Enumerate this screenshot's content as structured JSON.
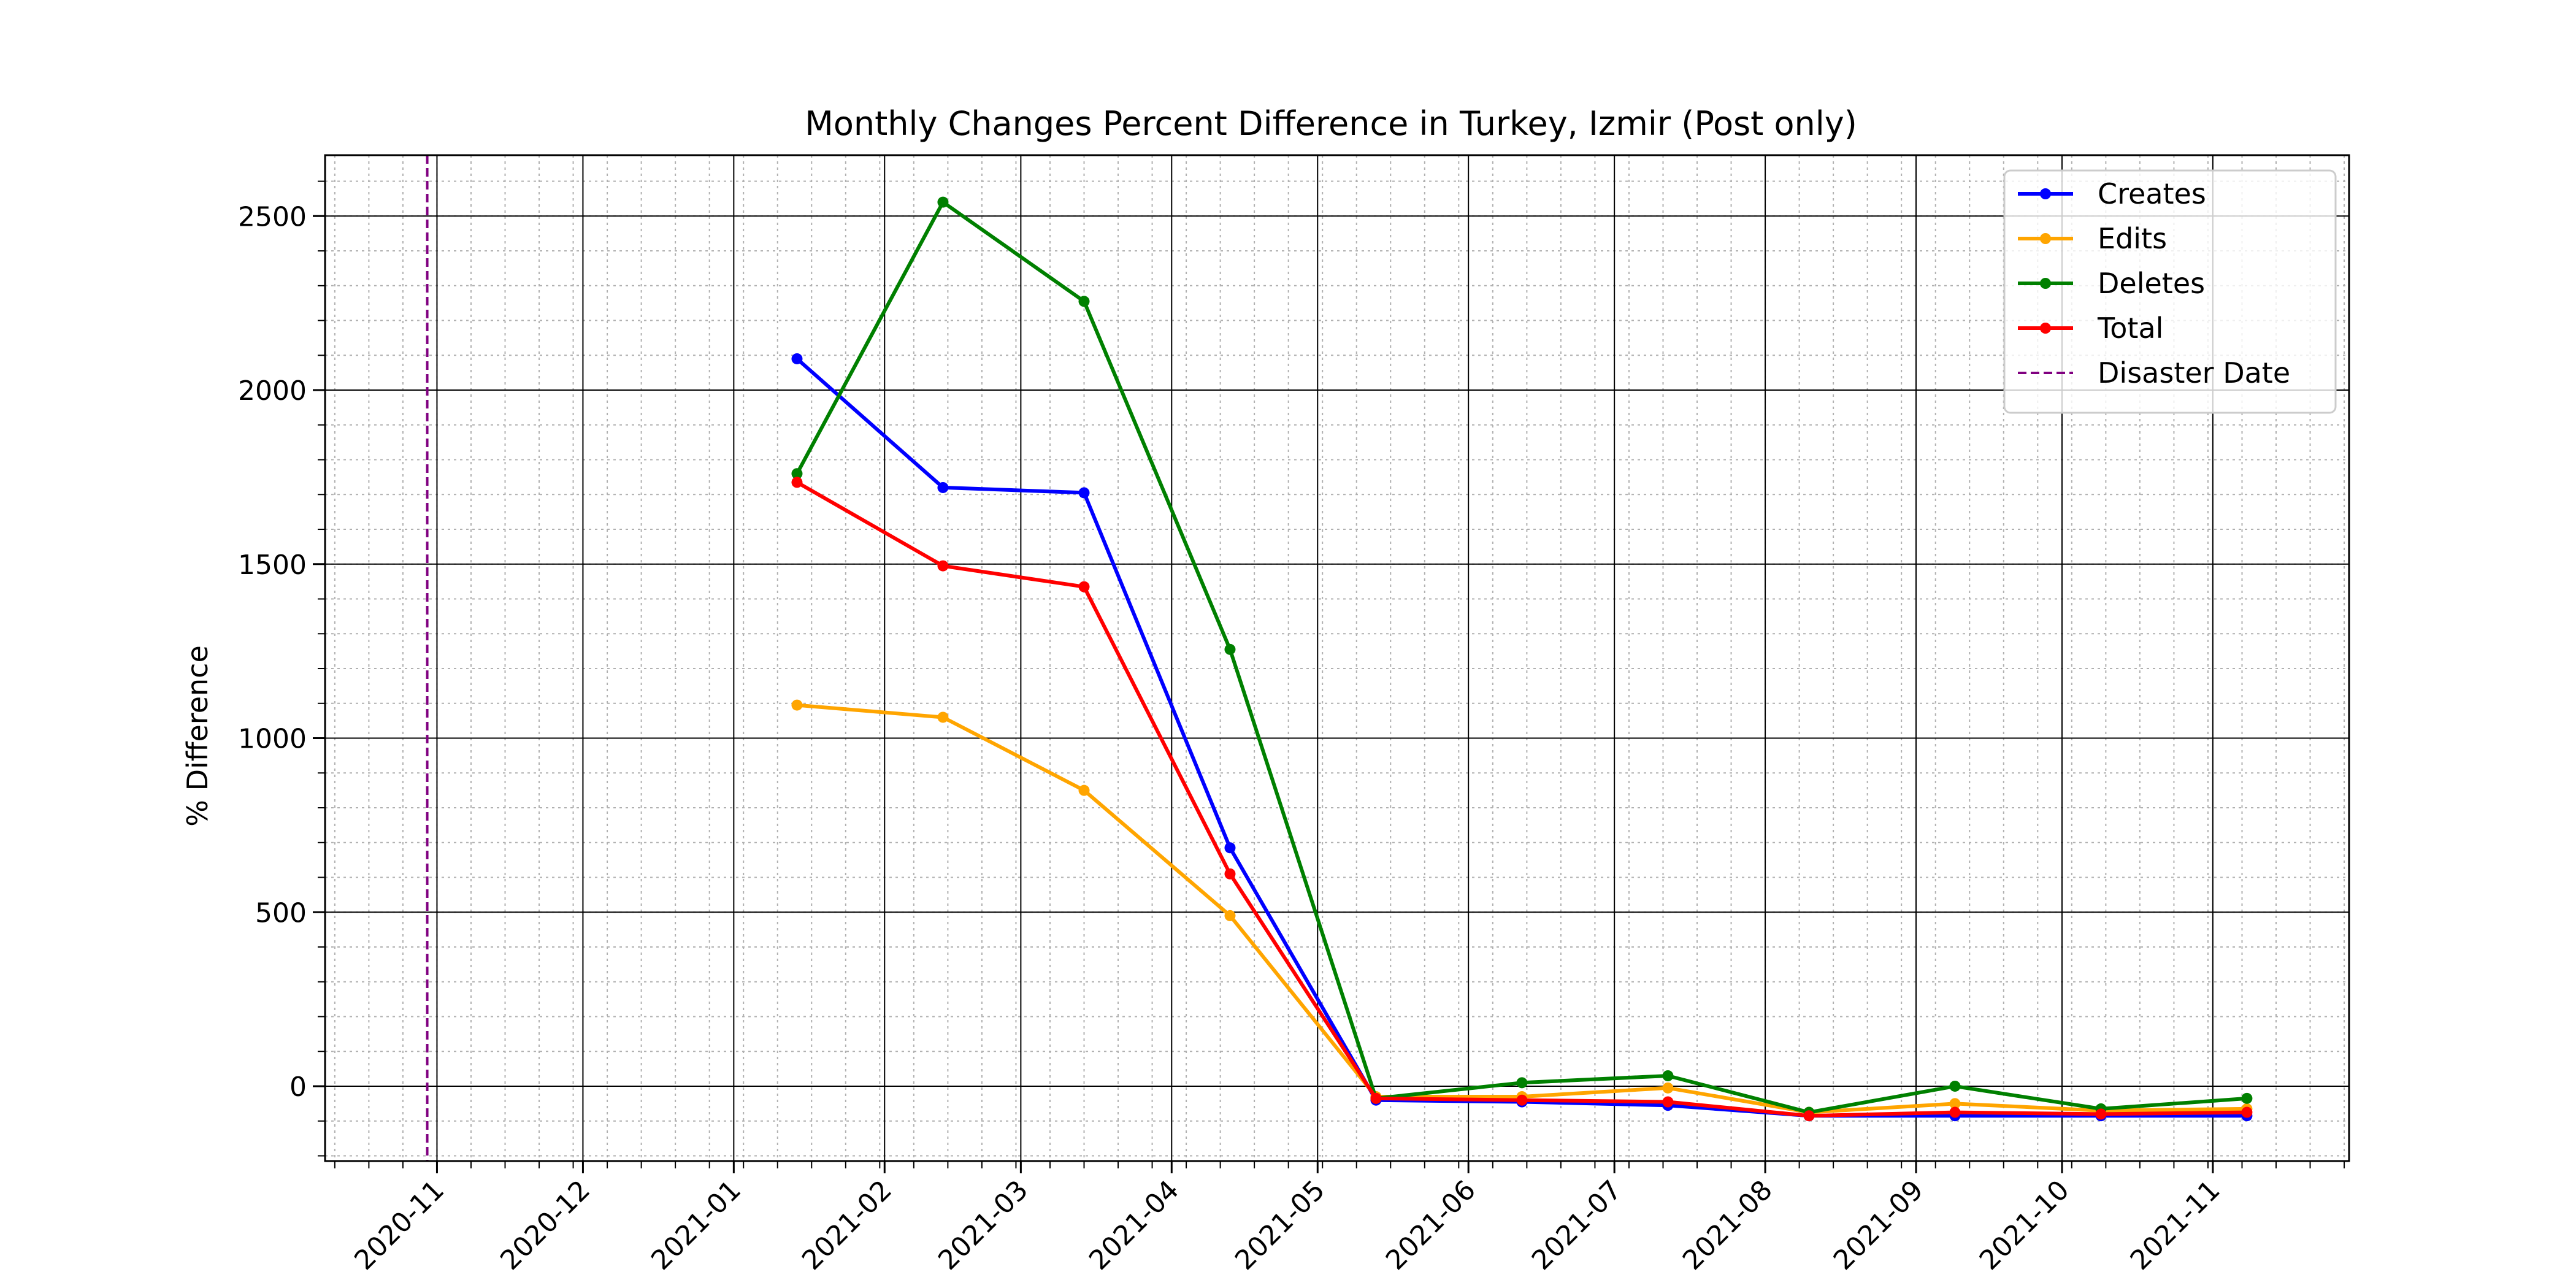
{
  "chart_data": {
    "type": "line",
    "title": "Monthly Changes Percent Difference in Turkey, Izmir (Post only)",
    "xlabel": "",
    "ylabel": "% Difference",
    "x": [
      "2021-01-14",
      "2021-02-13",
      "2021-03-14",
      "2021-04-13",
      "2021-05-13",
      "2021-06-12",
      "2021-07-12",
      "2021-08-10",
      "2021-09-09",
      "2021-10-09",
      "2021-11-08"
    ],
    "series": [
      {
        "name": "Creates",
        "color": "#0000ff",
        "values": [
          2090,
          1720,
          1705,
          685,
          -40,
          -45,
          -55,
          -85,
          -85,
          -85,
          -85
        ]
      },
      {
        "name": "Edits",
        "color": "#ffa500",
        "values": [
          1095,
          1060,
          850,
          490,
          -30,
          -30,
          -5,
          -75,
          -50,
          -70,
          -65
        ]
      },
      {
        "name": "Deletes",
        "color": "#008000",
        "values": [
          1760,
          2540,
          2255,
          1255,
          -35,
          10,
          30,
          -75,
          0,
          -65,
          -35
        ]
      },
      {
        "name": "Total",
        "color": "#ff0000",
        "values": [
          1735,
          1495,
          1435,
          610,
          -35,
          -40,
          -45,
          -85,
          -75,
          -80,
          -75
        ]
      }
    ],
    "reference_line": {
      "name": "Disaster Date",
      "color": "#800080",
      "x": "2020-10-30",
      "style": "dashed"
    },
    "x_ticks": [
      "2020-11",
      "2020-12",
      "2021-01",
      "2021-02",
      "2021-03",
      "2021-04",
      "2021-05",
      "2021-06",
      "2021-07",
      "2021-08",
      "2021-09",
      "2021-10",
      "2021-11"
    ],
    "xlim": [
      "2020-10-09",
      "2021-11-29"
    ],
    "y_ticks": [
      0,
      500,
      1000,
      1500,
      2000,
      2500
    ],
    "y_tick_labels": [
      "0",
      "500",
      "1000",
      "1500",
      "2000",
      "2500"
    ],
    "ylim": [
      -215,
      2675
    ],
    "grid": {
      "major": true,
      "minor": true
    },
    "legend_position": "top-right"
  }
}
